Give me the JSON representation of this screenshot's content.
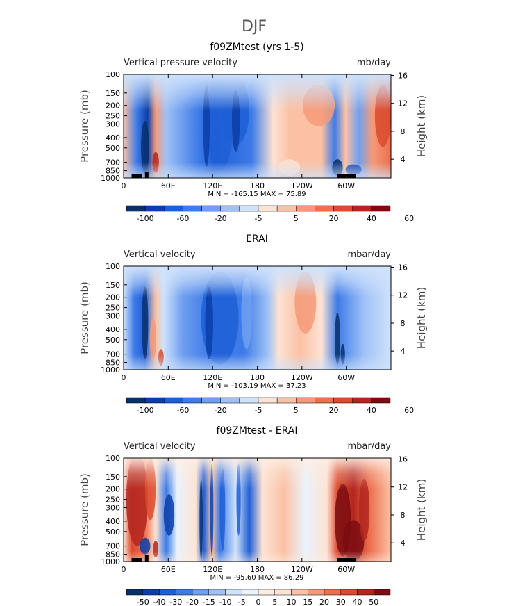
{
  "figure": {
    "title": "DJF"
  },
  "colors": {
    "bar1": [
      "#08306b",
      "#0b3ea8",
      "#1f5fd6",
      "#3d7be8",
      "#6f9ff0",
      "#9fc1f6",
      "#cfe2fb",
      "#fde3d4",
      "#fbc1a4",
      "#f49a78",
      "#ec6f4e",
      "#db4a2e",
      "#b3261e",
      "#7a0c12"
    ],
    "bar3": [
      "#08306b",
      "#0b3ea8",
      "#1f5fd6",
      "#3d7be8",
      "#6f9ff0",
      "#9fc1f6",
      "#cfe2fb",
      "#eaf3fd",
      "#fdeee4",
      "#fde3d4",
      "#fbc1a4",
      "#f49a78",
      "#ec6f4e",
      "#db4a2e",
      "#b3261e",
      "#7a0c12"
    ]
  },
  "chart_data": [
    {
      "type": "heatmap",
      "title": "f09ZMtest (yrs 1-5)",
      "left_label": "Vertical pressure velocity",
      "units": "mb/day",
      "ylabel": "Pressure (mb)",
      "ylabel_right": "Height (km)",
      "x_ticks": [
        "0",
        "60E",
        "120E",
        "180",
        "120W",
        "60W"
      ],
      "y_ticks": [
        "100",
        "150",
        "200",
        "250",
        "300",
        "400",
        "500",
        "700",
        "850",
        "1000"
      ],
      "y_ticks_right": [
        "16",
        "12",
        "8",
        "4"
      ],
      "stats": "MIN = -165.15   MAX =  75.89",
      "colorbar_labels": [
        "-100",
        "-60",
        "-20",
        "-5",
        "5",
        "20",
        "40",
        "60"
      ]
    },
    {
      "type": "heatmap",
      "title": "ERAI",
      "left_label": "Vertical velocity",
      "units": "mbar/day",
      "ylabel": "Pressure (mb)",
      "ylabel_right": "Height (km)",
      "x_ticks": [
        "0",
        "60E",
        "120E",
        "180",
        "120W",
        "60W"
      ],
      "y_ticks": [
        "100",
        "150",
        "200",
        "250",
        "300",
        "400",
        "500",
        "700",
        "850",
        "1000"
      ],
      "y_ticks_right": [
        "16",
        "12",
        "8",
        "4"
      ],
      "stats": "MIN = -103.19   MAX =  37.23",
      "colorbar_labels": [
        "-100",
        "-60",
        "-20",
        "-5",
        "5",
        "20",
        "40",
        "60"
      ]
    },
    {
      "type": "heatmap",
      "title": "f09ZMtest - ERAI",
      "left_label": "Vertical velocity",
      "units": "mbar/day",
      "ylabel": "Pressure (mb)",
      "ylabel_right": "Height (km)",
      "x_ticks": [
        "0",
        "60E",
        "120E",
        "180",
        "120W",
        "60W"
      ],
      "y_ticks": [
        "100",
        "150",
        "200",
        "250",
        "300",
        "400",
        "500",
        "700",
        "850",
        "1000"
      ],
      "y_ticks_right": [
        "16",
        "12",
        "8",
        "4"
      ],
      "stats": "MIN = -95.60   MAX =  86.29",
      "colorbar_labels": [
        "-50",
        "-40",
        "-30",
        "-20",
        "-15",
        "-10",
        "-5",
        "0",
        "5",
        "10",
        "15",
        "20",
        "30",
        "40",
        "50"
      ]
    }
  ]
}
